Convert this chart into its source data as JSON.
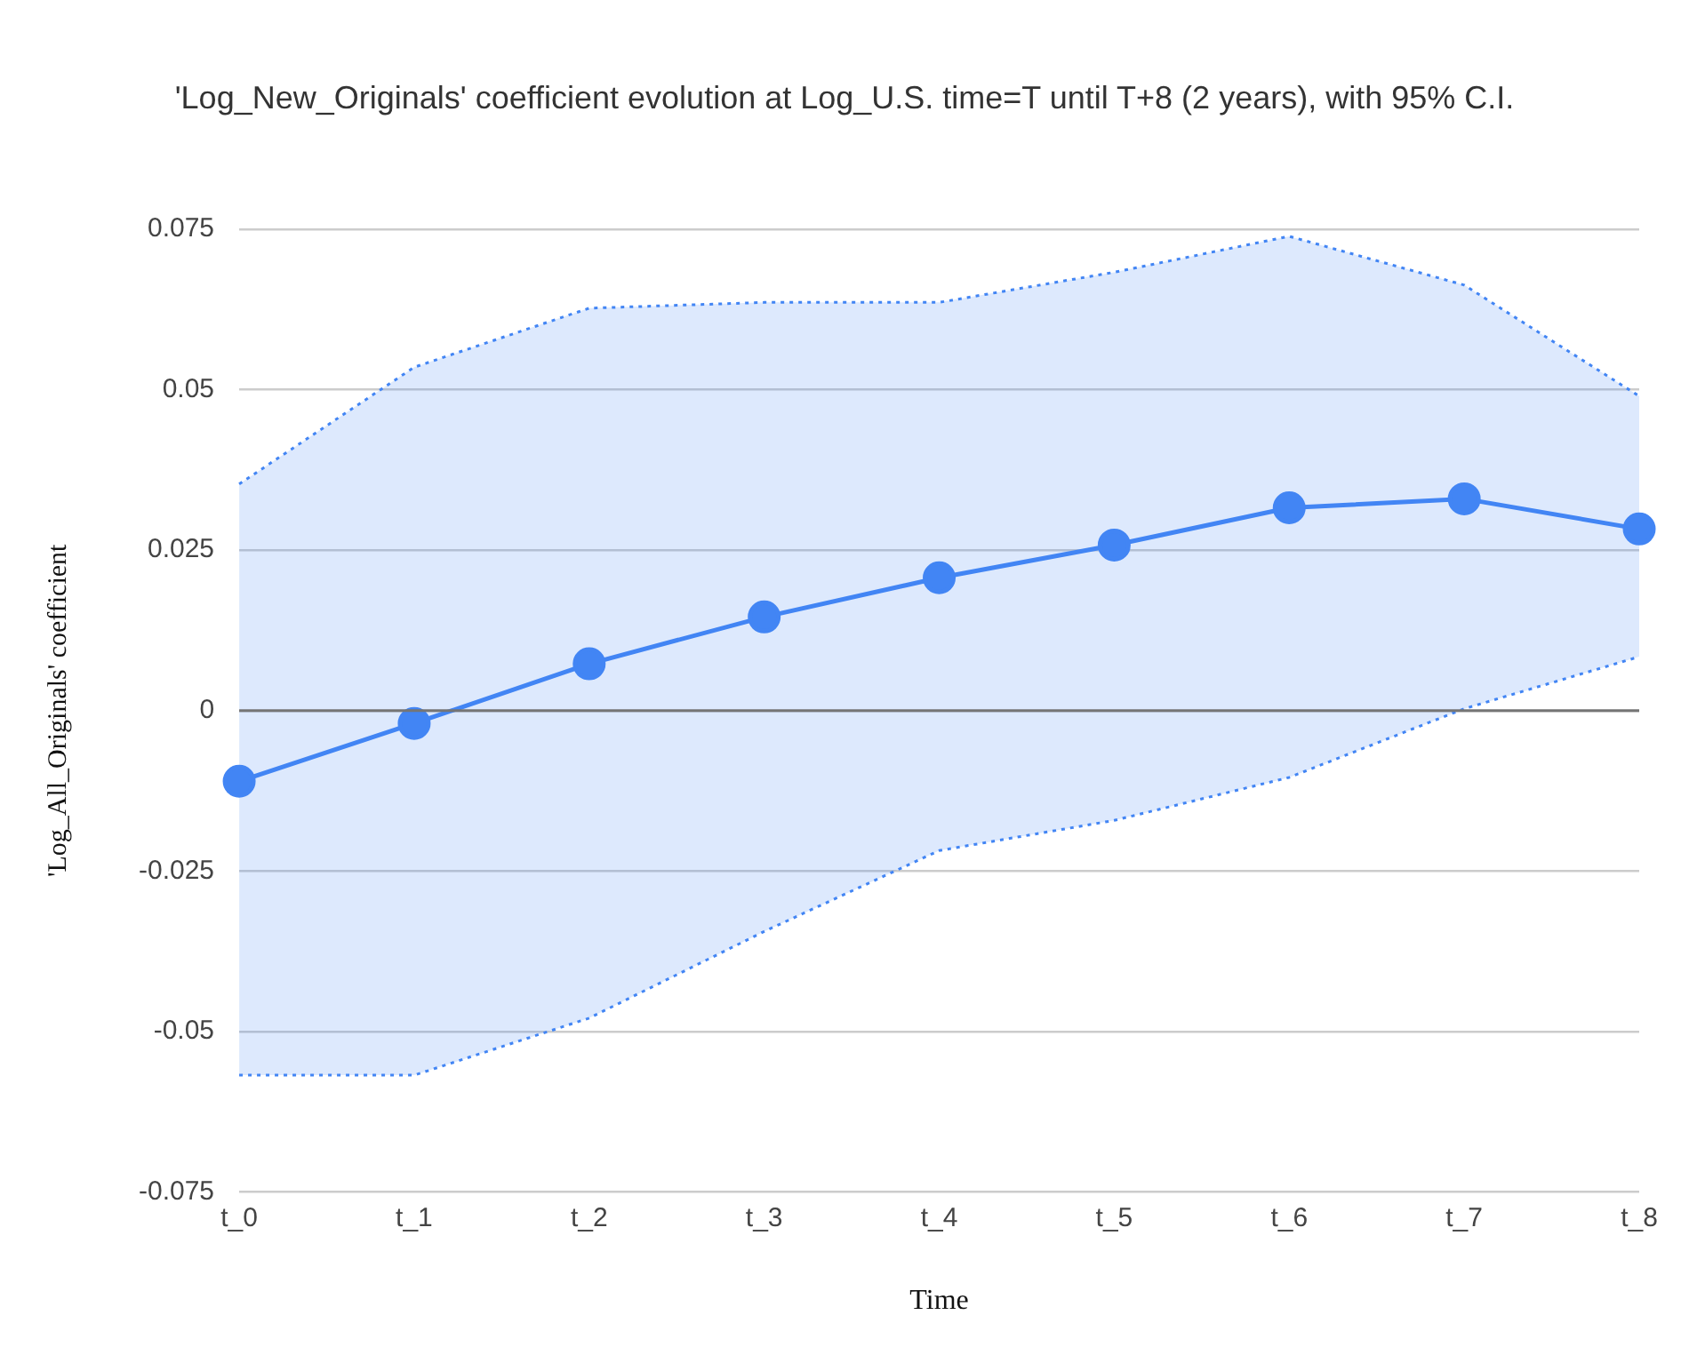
{
  "chart_data": {
    "type": "line",
    "title": "'Log_New_Originals' coefficient evolution at Log_U.S. time=T  until T+8 (2 years), with 95% C.I.",
    "xlabel": "Time",
    "ylabel": "'Log_All_Originals' coefficient",
    "categories": [
      "t_0",
      "t_1",
      "t_2",
      "t_3",
      "t_4",
      "t_5",
      "t_6",
      "t_7",
      "t_8"
    ],
    "series": [
      {
        "color": "#4285f4",
        "values": [
          -0.011,
          -0.002,
          0.0073,
          0.0146,
          0.0207,
          0.0258,
          0.0316,
          0.033,
          0.0283
        ],
        "lower": [
          -0.0568,
          -0.0568,
          -0.0479,
          -0.0344,
          -0.0218,
          -0.0171,
          -0.0104,
          0.0003,
          0.0084
        ],
        "upper": [
          0.0353,
          0.0535,
          0.0627,
          0.0636,
          0.0636,
          0.0683,
          0.0739,
          0.0663,
          0.049
        ]
      },
      {
        "type": "line",
        "color": "#4285f4",
        "line_style": "dotted",
        "marker": "none",
        "values": [
          0.0353,
          0.0535,
          0.0627,
          0.0636,
          0.0636,
          0.0683,
          0.0739,
          0.0663,
          0.049
        ]
      },
      {
        "type": "line",
        "color": "#4285f4",
        "line_style": "dotted",
        "marker": "none",
        "values": [
          -0.0568,
          -0.0568,
          -0.0479,
          -0.0344,
          -0.0218,
          -0.0171,
          -0.0104,
          0.0003,
          0.0084
        ]
      }
    ],
    "ylim": [
      -0.075,
      0.075
    ],
    "yticks": [
      -0.075,
      -0.05,
      -0.025,
      0,
      0.025,
      0.05,
      0.075
    ],
    "ref_lines": [
      {
        "axis": "y",
        "value": 0,
        "color": "#757575"
      }
    ],
    "grid": "y",
    "legend": false,
    "marker": "circle",
    "line_style": "solid"
  }
}
